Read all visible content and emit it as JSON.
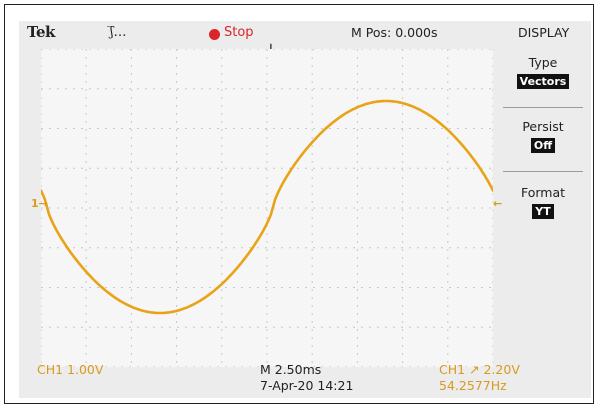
{
  "header": {
    "brand": "Tek",
    "trigger_mode": "ʃ̅…",
    "run_state": "Stop",
    "horizontal_position": "M Pos: 0.000s",
    "menu_title": "DISPLAY"
  },
  "side_menu": {
    "items": [
      {
        "label": "Type",
        "value": "Vectors"
      },
      {
        "label": "Persist",
        "value": "Off"
      },
      {
        "label": "Format",
        "value": "YT"
      }
    ]
  },
  "channel": {
    "ground_marker": "1→",
    "trigger_level_marker": "←"
  },
  "footer": {
    "ch1_scale": "CH1  1.00V",
    "timebase": "M 2.50ms",
    "date": "7-Apr-20  14:21",
    "trigger_info": "CH1 ↗ 2.20V",
    "frequency": "54.2577Hz"
  },
  "colors": {
    "trace": "#e8a317",
    "screen_bg": "#ececec",
    "graticule": "#c8c8c8",
    "stop_indicator": "#d8262a",
    "menu_value_bg": "#111111"
  },
  "waveform": {
    "shape": "sine",
    "graticule_divisions": {
      "x": 10,
      "y": 8
    }
  }
}
